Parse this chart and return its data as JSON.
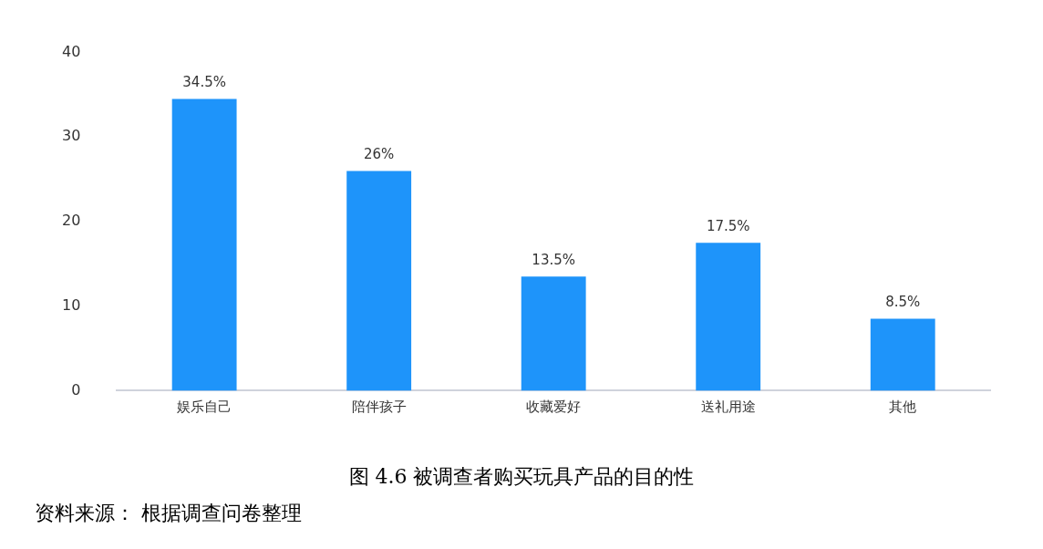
{
  "chart_data": {
    "type": "bar",
    "title": "图 4.6 被调查者购买玩具产品的目的性",
    "categories": [
      "娱乐自己",
      "陪伴孩子",
      "收藏爱好",
      "送礼用途",
      "其他"
    ],
    "values": [
      34.5,
      26,
      13.5,
      17.5,
      8.5
    ],
    "value_labels": [
      "34.5%",
      "26%",
      "13.5%",
      "17.5%",
      "8.5%"
    ],
    "color": "#1e94fa",
    "ylim": [
      0,
      40
    ],
    "yticks": [
      0,
      10,
      20,
      30,
      40
    ],
    "grid": false,
    "legend": false,
    "annotations": [
      "资料来源： 根据调查问卷整理"
    ]
  }
}
